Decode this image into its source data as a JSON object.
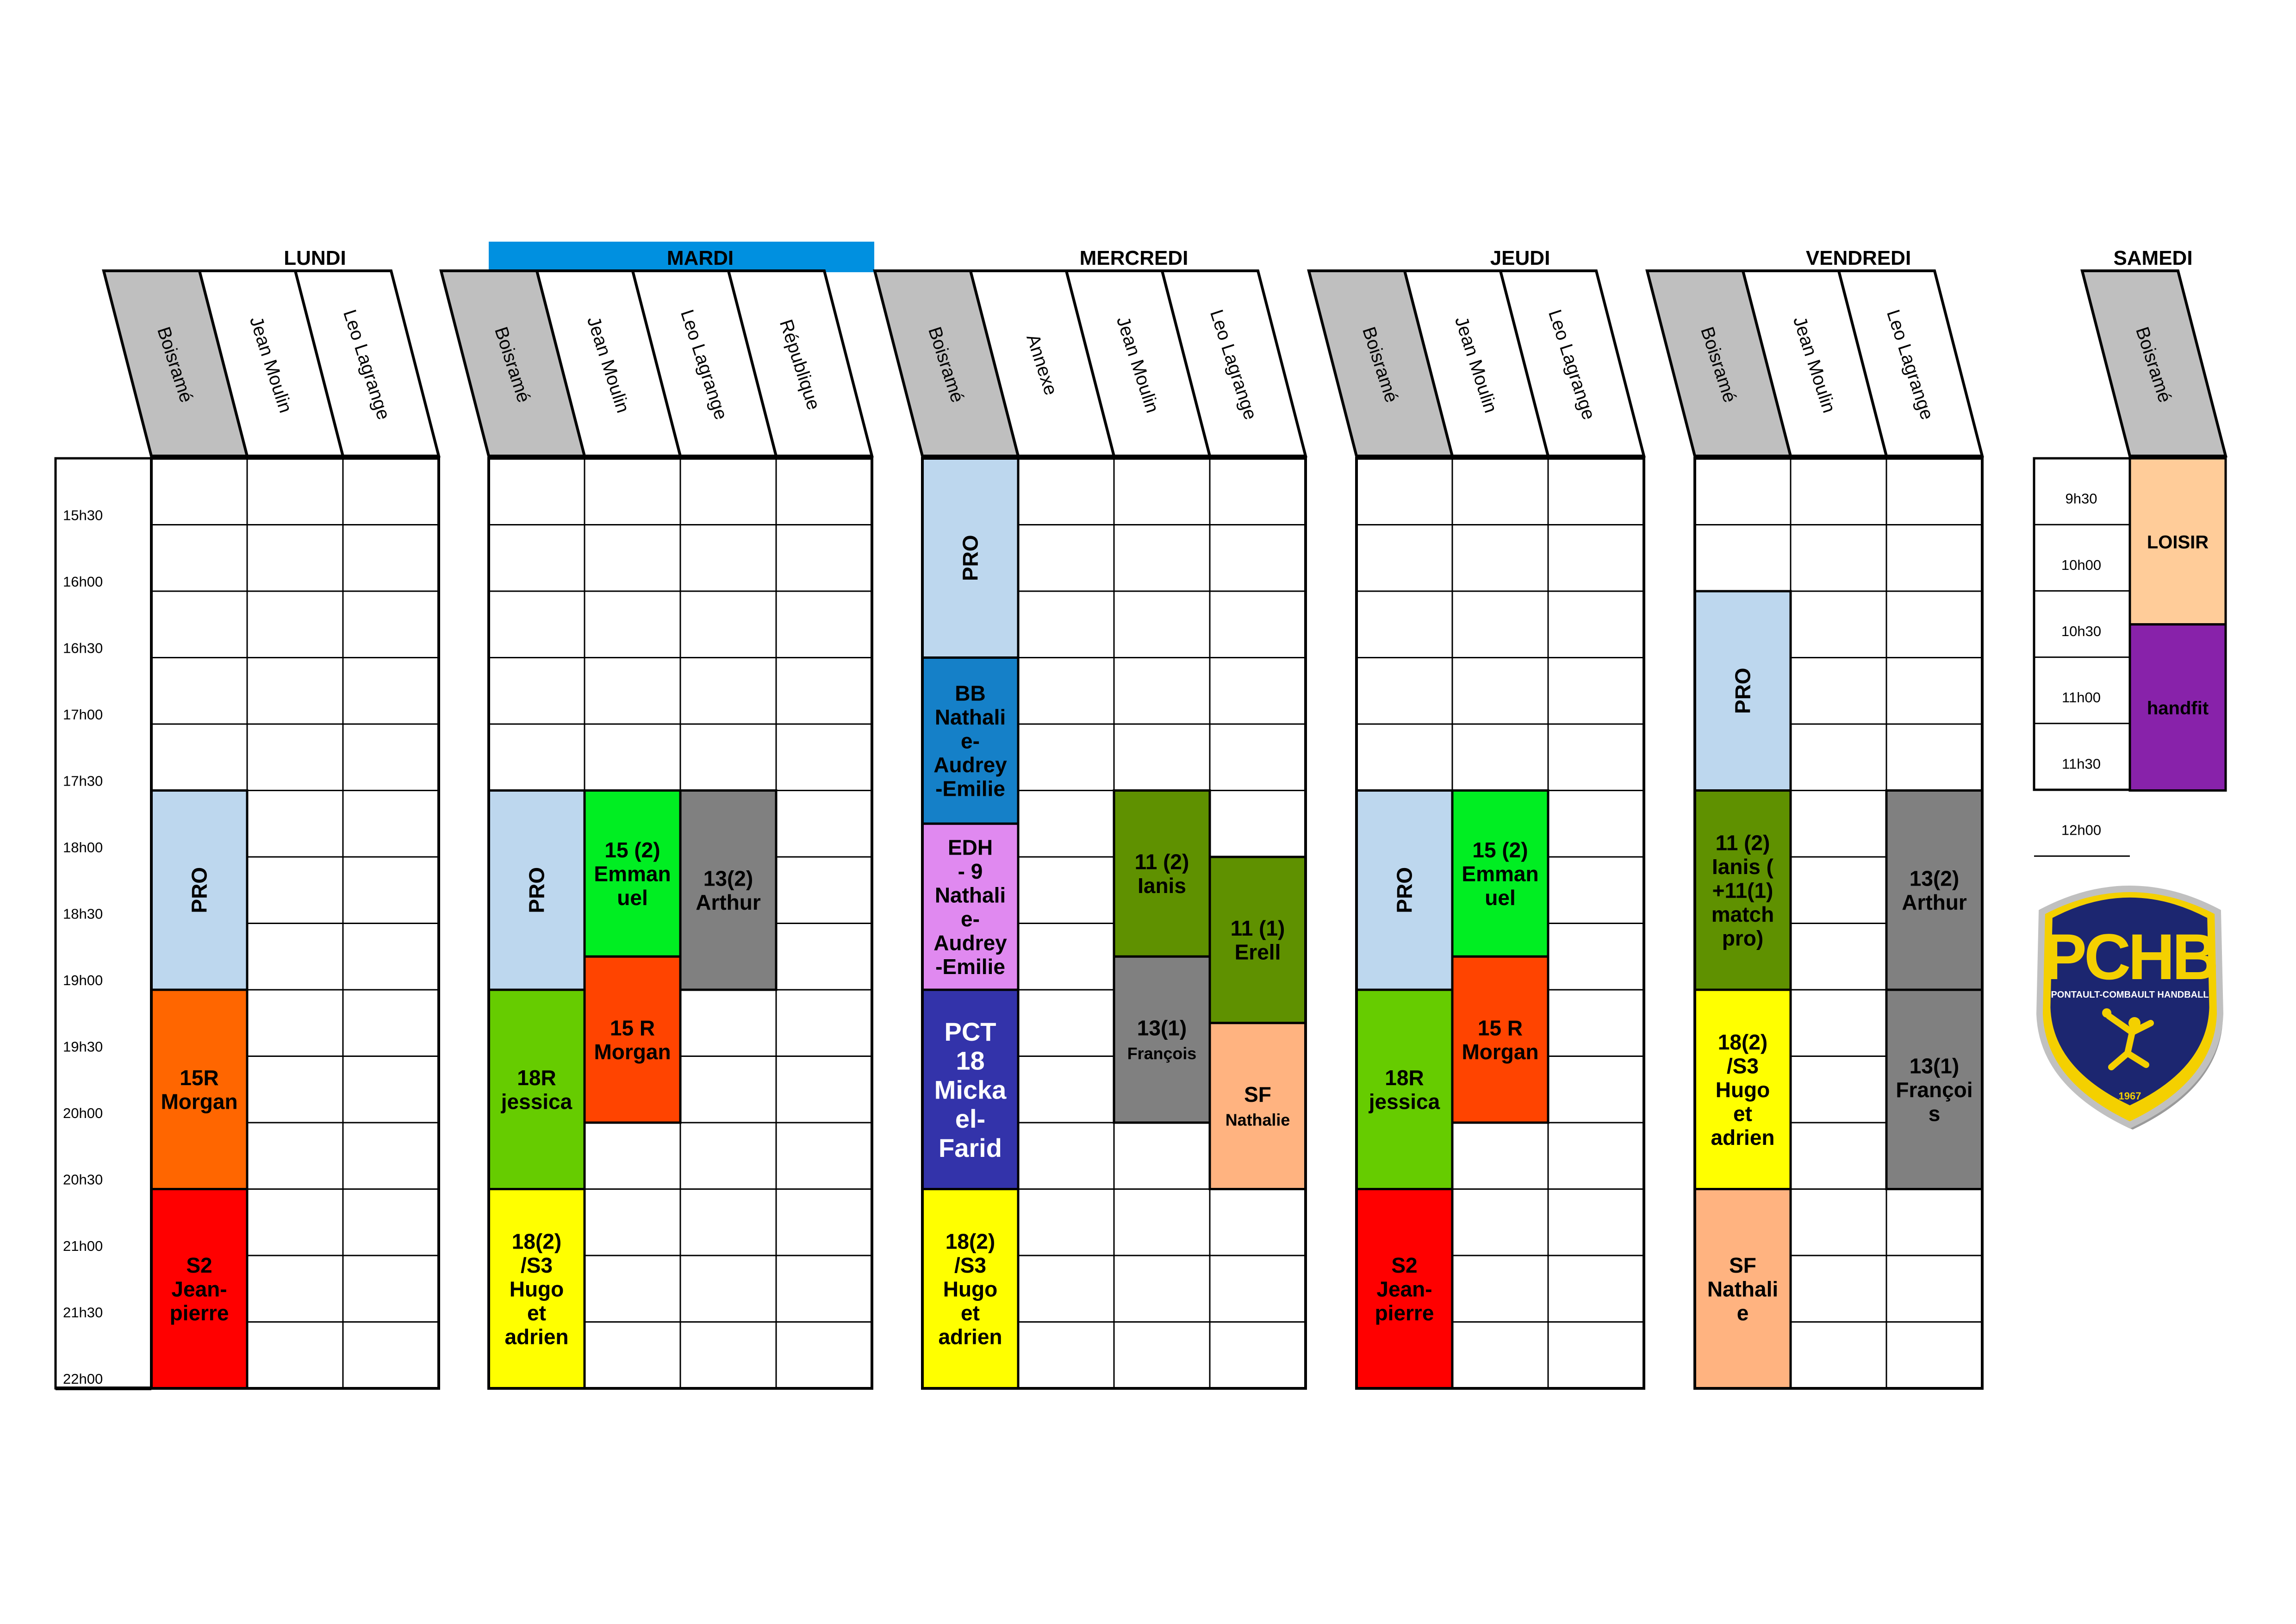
{
  "schedule": {
    "time_slots": [
      "15h30",
      "16h00",
      "16h30",
      "17h00",
      "17h30",
      "18h00",
      "18h30",
      "19h00",
      "19h30",
      "20h00",
      "20h30",
      "21h00",
      "21h30",
      "22h00"
    ],
    "saturday_time_slots": [
      "9h30",
      "10h00",
      "10h30",
      "11h00",
      "11h30",
      "12h00"
    ],
    "days": [
      {
        "name": "LUNDI",
        "highlighted": false,
        "venues": [
          "Boisramé",
          "Jean Moulin",
          "Leo Lagrange"
        ],
        "sessions": [
          {
            "venue": 0,
            "start": 5,
            "end": 8,
            "label": "PRO",
            "vertical": true,
            "color": "#bdd7ee"
          },
          {
            "venue": 0,
            "start": 8,
            "end": 11,
            "label": "15R\nMorgan",
            "color": "#ff6600"
          },
          {
            "venue": 0,
            "start": 11,
            "end": 14,
            "label": "S2\nJean-\npierre",
            "color": "#ff0000"
          }
        ]
      },
      {
        "name": "MARDI",
        "highlighted": true,
        "highlight_color": "#0090e0",
        "venues": [
          "Boisramé",
          "Jean Moulin",
          "Leo Lagrange",
          "République"
        ],
        "sessions": [
          {
            "venue": 0,
            "start": 5,
            "end": 8,
            "label": "PRO",
            "vertical": true,
            "color": "#bdd7ee"
          },
          {
            "venue": 1,
            "start": 5,
            "end": 7.5,
            "label": "15 (2)\nEmman\nuel",
            "color": "#00ee22"
          },
          {
            "venue": 2,
            "start": 5,
            "end": 8,
            "label": "13(2)\nArthur",
            "color": "#808080"
          },
          {
            "venue": 1,
            "start": 7.5,
            "end": 10,
            "label": "15 R\nMorgan",
            "color": "#ff4400"
          },
          {
            "venue": 0,
            "start": 8,
            "end": 11,
            "label": "18R\njessica",
            "color": "#66cc00"
          },
          {
            "venue": 0,
            "start": 11,
            "end": 14,
            "label": "18(2)\n/S3\nHugo\net\nadrien",
            "color": "#ffff00"
          }
        ]
      },
      {
        "name": "MERCREDI",
        "highlighted": false,
        "venues": [
          "Boisramé",
          "Annexe",
          "Jean Moulin",
          "Leo Lagrange"
        ],
        "sessions": [
          {
            "venue": 0,
            "start": 0,
            "end": 3,
            "label": "PRO",
            "vertical": true,
            "color": "#bdd7ee"
          },
          {
            "venue": 0,
            "start": 3,
            "end": 5.5,
            "label": "BB\nNathali\ne-\nAudrey\n-Emilie",
            "color": "#1580c8"
          },
          {
            "venue": 0,
            "start": 5.5,
            "end": 8,
            "label": "EDH\n- 9\nNathali\ne-\nAudrey\n-Emilie",
            "color": "#e089f0"
          },
          {
            "venue": 0,
            "start": 8,
            "end": 11,
            "label": "PCT\n18\nMicka\nel-\nFarid",
            "color": "#3333aa",
            "text_color": "#ffffff",
            "large": true
          },
          {
            "venue": 0,
            "start": 11,
            "end": 14,
            "label": "18(2)\n/S3\nHugo\net\nadrien",
            "color": "#ffff00"
          },
          {
            "venue": 2,
            "start": 5,
            "end": 7.5,
            "label": "11 (2)\nIanis",
            "color": "#5f9100"
          },
          {
            "venue": 3,
            "start": 6,
            "end": 8.5,
            "label": "11 (1)\nErell",
            "color": "#5f9100"
          },
          {
            "venue": 2,
            "start": 7.5,
            "end": 10,
            "label": "13(1)\nFrançois",
            "color": "#808080",
            "small_second": true
          },
          {
            "venue": 3,
            "start": 8.5,
            "end": 11,
            "label": "SF\nNathalie",
            "color": "#ffb380",
            "small_second": true
          }
        ]
      },
      {
        "name": "JEUDI",
        "highlighted": false,
        "venues": [
          "Boisramé",
          "Jean Moulin",
          "Leo Lagrange"
        ],
        "sessions": [
          {
            "venue": 0,
            "start": 5,
            "end": 8,
            "label": "PRO",
            "vertical": true,
            "color": "#bdd7ee"
          },
          {
            "venue": 1,
            "start": 5,
            "end": 7.5,
            "label": "15 (2)\nEmman\nuel",
            "color": "#00ee22"
          },
          {
            "venue": 1,
            "start": 7.5,
            "end": 10,
            "label": "15 R\nMorgan",
            "color": "#ff4400"
          },
          {
            "venue": 0,
            "start": 8,
            "end": 11,
            "label": "18R\njessica",
            "color": "#66cc00"
          },
          {
            "venue": 0,
            "start": 11,
            "end": 14,
            "label": "S2\nJean-\npierre",
            "color": "#ff0000"
          }
        ]
      },
      {
        "name": "VENDREDI",
        "highlighted": false,
        "venues": [
          "Boisramé",
          "Jean Moulin",
          "Leo Lagrange"
        ],
        "sessions": [
          {
            "venue": 0,
            "start": 2,
            "end": 5,
            "label": "PRO",
            "vertical": true,
            "color": "#bdd7ee"
          },
          {
            "venue": 0,
            "start": 5,
            "end": 8,
            "label": "11 (2)\nIanis (\n+11(1)\nmatch\npro)",
            "color": "#5f9100"
          },
          {
            "venue": 2,
            "start": 5,
            "end": 8,
            "label": "13(2)\nArthur",
            "color": "#808080"
          },
          {
            "venue": 0,
            "start": 8,
            "end": 11,
            "label": "18(2)\n/S3\nHugo\net\nadrien",
            "color": "#ffff00"
          },
          {
            "venue": 2,
            "start": 8,
            "end": 11,
            "label": "13(1)\nFrançoi\ns",
            "color": "#808080"
          },
          {
            "venue": 0,
            "start": 11,
            "end": 14,
            "label": "SF\nNathali\ne",
            "color": "#ffb380"
          }
        ]
      }
    ],
    "saturday": {
      "name": "SAMEDI",
      "venues": [
        "Boisramé"
      ],
      "sessions": [
        {
          "start": 0,
          "end": 2.5,
          "label": "LOISIR",
          "color": "#ffcc99"
        },
        {
          "start": 2.5,
          "end": 5,
          "label": "handfit",
          "color": "#8822aa"
        }
      ]
    }
  },
  "logo": {
    "text": "PCHB",
    "subtitle": "PONTAULT-COMBAULT HANDBALL",
    "year": "1967",
    "primary_color": "#1c2670",
    "accent_color": "#f4d000"
  }
}
